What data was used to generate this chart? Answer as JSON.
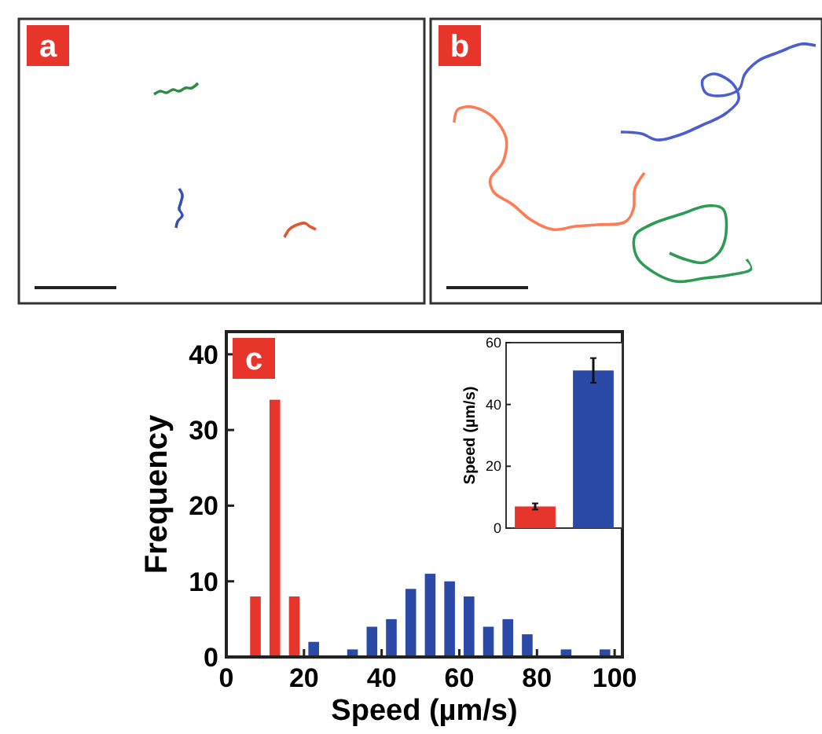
{
  "chart_data": [
    {
      "type": "other",
      "title": "a"
    },
    {
      "type": "other",
      "title": "b"
    },
    {
      "type": "histogram",
      "title": "c",
      "xlabel": "Speed (µm/s)",
      "ylabel": "Frequency",
      "bins": [
        5,
        10,
        15,
        20,
        25,
        30,
        35,
        40,
        45,
        50,
        55,
        60,
        65,
        70,
        75,
        80,
        85,
        90,
        95,
        100
      ],
      "values": [
        8,
        34,
        8,
        2,
        0,
        1,
        4,
        5,
        9,
        11,
        10,
        8,
        4,
        5,
        3,
        0,
        1,
        0,
        1
      ],
      "colors": [
        "#e8352b",
        "#e8352b",
        "#e8352b",
        "#2b4aa8",
        "#2b4aa8",
        "#2b4aa8",
        "#2b4aa8",
        "#2b4aa8",
        "#2b4aa8",
        "#2b4aa8",
        "#2b4aa8",
        "#2b4aa8",
        "#2b4aa8",
        "#2b4aa8",
        "#2b4aa8",
        "#2b4aa8",
        "#2b4aa8",
        "#2b4aa8",
        "#2b4aa8"
      ],
      "xlim": [
        0,
        102
      ],
      "xticks": [
        0,
        20,
        40,
        60,
        80,
        100
      ],
      "ylim": [
        0,
        43
      ],
      "yticks": [
        0,
        10,
        20,
        30,
        40
      ]
    },
    {
      "type": "bar",
      "ylabel": "Speed (µm/s)",
      "categories": [
        null,
        null
      ],
      "values": [
        7,
        51
      ],
      "errors": [
        1,
        4
      ],
      "colors": [
        "#e8352b",
        "#2b4aa8"
      ],
      "ylim": [
        0,
        60
      ],
      "yticks": [
        0,
        20,
        40,
        60
      ]
    }
  ]
}
